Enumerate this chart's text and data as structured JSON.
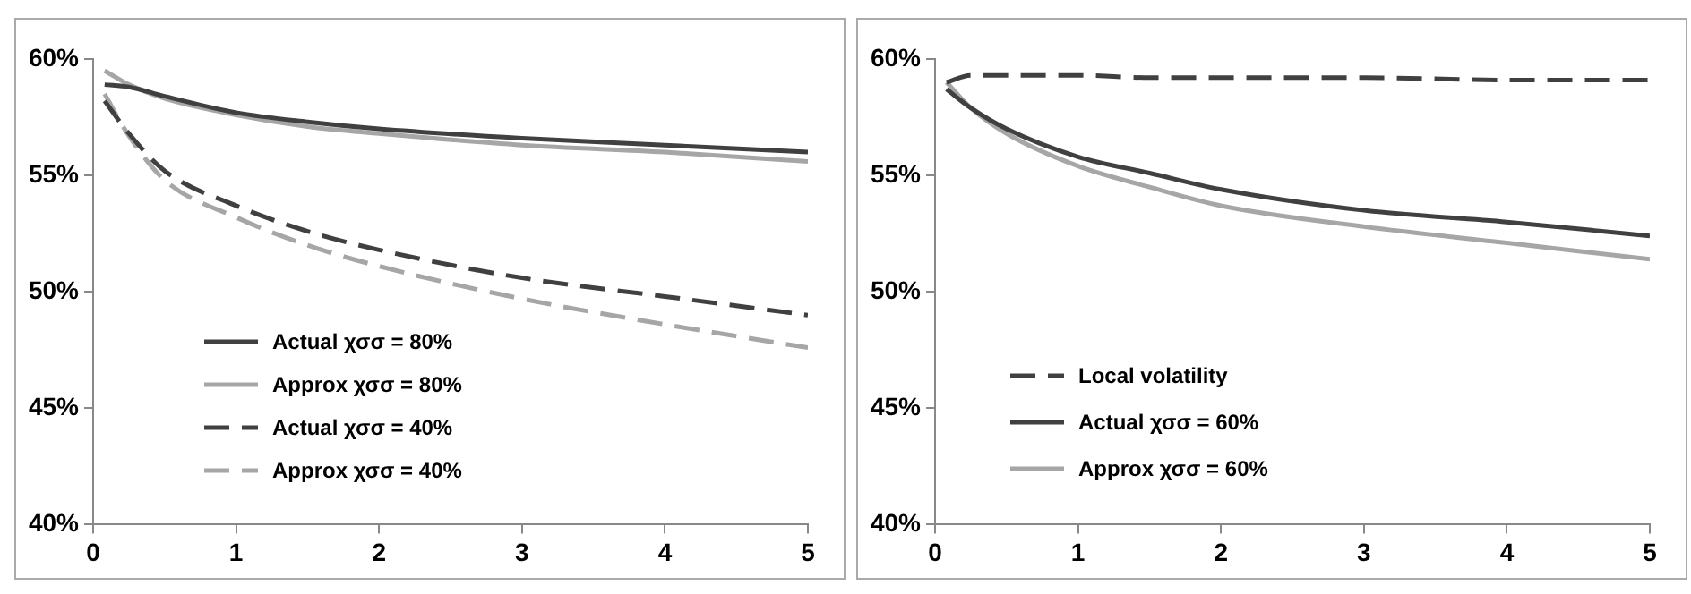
{
  "chart_data": [
    {
      "type": "line",
      "x": [
        0.08,
        0.25,
        0.5,
        1,
        1.5,
        2,
        3,
        4,
        5
      ],
      "xlim": [
        0,
        5
      ],
      "xticks": [
        0,
        1,
        2,
        3,
        4,
        5
      ],
      "ylim": [
        40,
        60
      ],
      "yticks": [
        {
          "value": 40,
          "label": "40%"
        },
        {
          "value": 45,
          "label": "45%"
        },
        {
          "value": 50,
          "label": "50%"
        },
        {
          "value": 55,
          "label": "55%"
        },
        {
          "value": 60,
          "label": "60%"
        }
      ],
      "grid": false,
      "legend": "bottom left",
      "marker": "none",
      "series": [
        {
          "name": "Actual χσσ = 80%",
          "color": "#404040",
          "line_style": "solid",
          "values": [
            58.9,
            58.8,
            58.4,
            57.7,
            57.3,
            57.0,
            56.6,
            56.3,
            56.0
          ]
        },
        {
          "name": "Approx χσσ = 80%",
          "color": "#a6a6a6",
          "line_style": "solid",
          "values": [
            59.5,
            58.9,
            58.3,
            57.6,
            57.1,
            56.8,
            56.3,
            56.0,
            55.6
          ]
        },
        {
          "name": "Actual χσσ = 40%",
          "color": "#404040",
          "line_style": "dashed",
          "values": [
            58.2,
            56.8,
            55.2,
            53.7,
            52.6,
            51.8,
            50.6,
            49.8,
            49.0
          ]
        },
        {
          "name": "Approx χσσ = 40%",
          "color": "#a6a6a6",
          "line_style": "dashed",
          "values": [
            58.5,
            56.7,
            54.8,
            53.2,
            52.0,
            51.1,
            49.7,
            48.6,
            47.6
          ]
        }
      ]
    },
    {
      "type": "line",
      "x": [
        0.08,
        0.25,
        0.5,
        1,
        1.5,
        2,
        3,
        4,
        5
      ],
      "xlim": [
        0,
        5
      ],
      "xticks": [
        0,
        1,
        2,
        3,
        4,
        5
      ],
      "ylim": [
        40,
        60
      ],
      "yticks": [
        {
          "value": 40,
          "label": "40%"
        },
        {
          "value": 45,
          "label": "45%"
        },
        {
          "value": 50,
          "label": "50%"
        },
        {
          "value": 55,
          "label": "55%"
        },
        {
          "value": 60,
          "label": "60%"
        }
      ],
      "grid": false,
      "legend": "bottom left",
      "marker": "none",
      "series": [
        {
          "name": "Local volatility",
          "color": "#404040",
          "line_style": "dashed",
          "values": [
            59.0,
            59.3,
            59.3,
            59.3,
            59.2,
            59.2,
            59.2,
            59.1,
            59.1
          ]
        },
        {
          "name": "Actual χσσ = 60%",
          "color": "#404040",
          "line_style": "solid",
          "values": [
            58.7,
            57.9,
            57.0,
            55.8,
            55.1,
            54.4,
            53.5,
            53.0,
            52.4
          ]
        },
        {
          "name": "Approx χσσ = 60%",
          "color": "#a6a6a6",
          "line_style": "solid",
          "values": [
            59.0,
            57.9,
            56.8,
            55.4,
            54.5,
            53.7,
            52.8,
            52.1,
            51.4
          ]
        }
      ]
    }
  ]
}
